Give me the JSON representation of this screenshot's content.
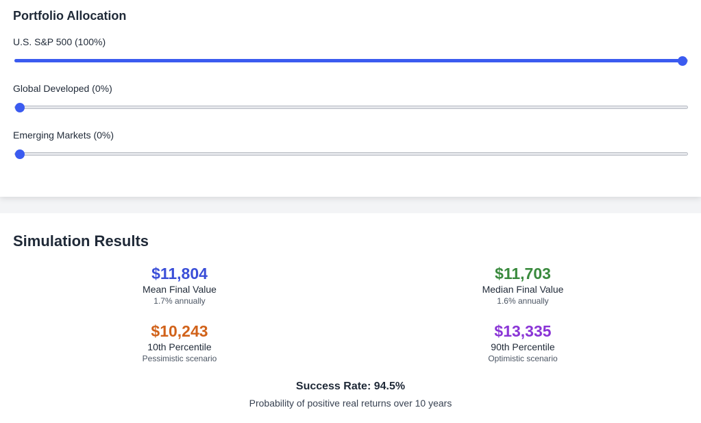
{
  "allocation": {
    "title": "Portfolio Allocation",
    "sliders": [
      {
        "label": "U.S. S&P 500 (100%)",
        "value_percent": 100
      },
      {
        "label": "Global Developed (0%)",
        "value_percent": 0
      },
      {
        "label": "Emerging Markets (0%)",
        "value_percent": 0
      }
    ]
  },
  "results": {
    "title": "Simulation Results",
    "stats": [
      {
        "value": "$11,804",
        "label": "Mean Final Value",
        "sub": "1.7% annually",
        "color": "#3b4fd8"
      },
      {
        "value": "$11,703",
        "label": "Median Final Value",
        "sub": "1.6% annually",
        "color": "#3a8a3e"
      },
      {
        "value": "$10,243",
        "label": "10th Percentile",
        "sub": "Pessimistic scenario",
        "color": "#d1621a"
      },
      {
        "value": "$13,335",
        "label": "90th Percentile",
        "sub": "Optimistic scenario",
        "color": "#8a35d6"
      }
    ],
    "success_title": "Success Rate: 94.5%",
    "success_desc": "Probability of positive real returns over 10 years"
  },
  "colors": {
    "accent": "#3b5bf0"
  }
}
